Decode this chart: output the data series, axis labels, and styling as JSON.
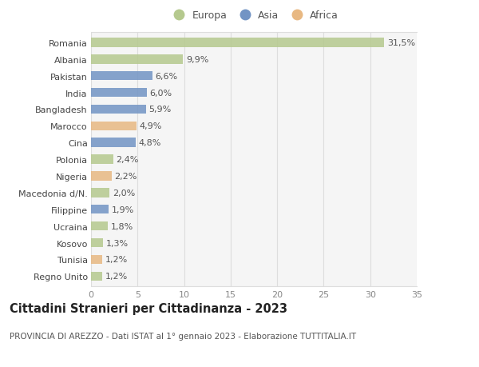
{
  "categories": [
    "Romania",
    "Albania",
    "Pakistan",
    "India",
    "Bangladesh",
    "Marocco",
    "Cina",
    "Polonia",
    "Nigeria",
    "Macedonia d/N.",
    "Filippine",
    "Ucraina",
    "Kosovo",
    "Tunisia",
    "Regno Unito"
  ],
  "values": [
    31.5,
    9.9,
    6.6,
    6.0,
    5.9,
    4.9,
    4.8,
    2.4,
    2.2,
    2.0,
    1.9,
    1.8,
    1.3,
    1.2,
    1.2
  ],
  "labels": [
    "31,5%",
    "9,9%",
    "6,6%",
    "6,0%",
    "5,9%",
    "4,9%",
    "4,8%",
    "2,4%",
    "2,2%",
    "2,0%",
    "1,9%",
    "1,8%",
    "1,3%",
    "1,2%",
    "1,2%"
  ],
  "continents": [
    "Europa",
    "Europa",
    "Asia",
    "Asia",
    "Asia",
    "Africa",
    "Asia",
    "Europa",
    "Africa",
    "Europa",
    "Asia",
    "Europa",
    "Europa",
    "Africa",
    "Europa"
  ],
  "colors": {
    "Europa": "#b5c98e",
    "Asia": "#7294c4",
    "Africa": "#e8b882"
  },
  "legend_order": [
    "Europa",
    "Asia",
    "Africa"
  ],
  "title": "Cittadini Stranieri per Cittadinanza - 2023",
  "subtitle": "PROVINCIA DI AREZZO - Dati ISTAT al 1° gennaio 2023 - Elaborazione TUTTITALIA.IT",
  "xlim": [
    0,
    35
  ],
  "xticks": [
    0,
    5,
    10,
    15,
    20,
    25,
    30,
    35
  ],
  "background_color": "#ffffff",
  "plot_background": "#f5f5f5",
  "grid_color": "#dddddd",
  "bar_height": 0.55,
  "label_fontsize": 8,
  "tick_fontsize": 8,
  "title_fontsize": 10.5,
  "subtitle_fontsize": 7.5,
  "legend_fontsize": 9
}
